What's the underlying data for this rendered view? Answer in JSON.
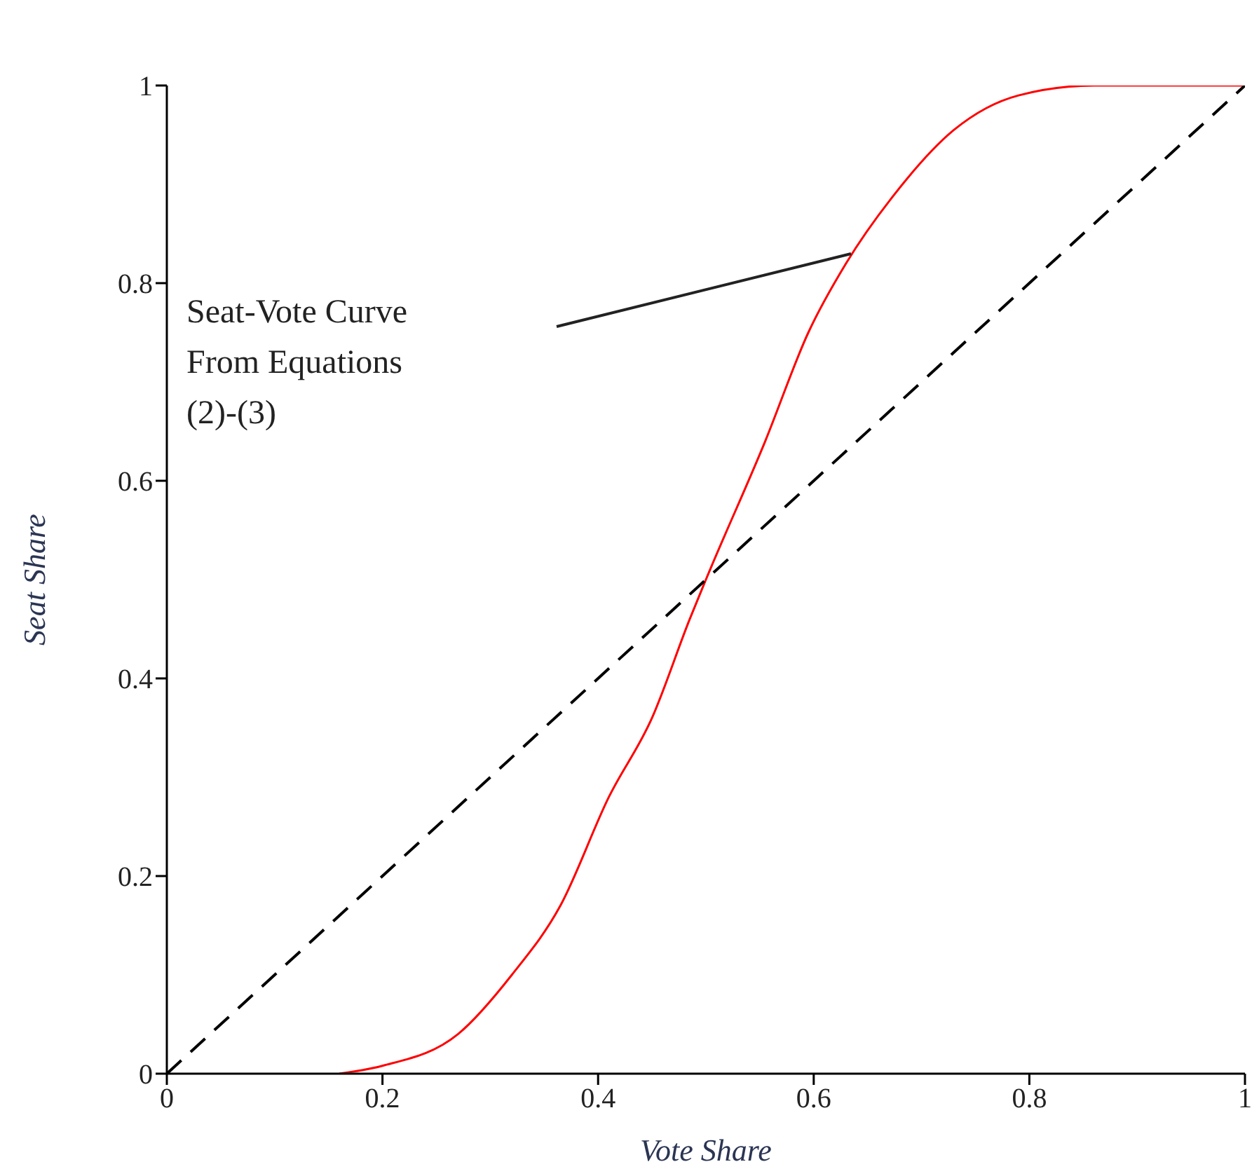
{
  "chart_data": {
    "type": "line",
    "xlabel": "Vote Share",
    "ylabel": "Seat Share",
    "xlim": [
      0,
      1
    ],
    "ylim": [
      0,
      1
    ],
    "xticks": [
      0,
      0.2,
      0.4,
      0.6,
      0.8,
      1
    ],
    "yticks": [
      0,
      0.2,
      0.4,
      0.6,
      0.8,
      1
    ],
    "marker": "none",
    "series": [
      {
        "color": "#ff0000",
        "line_style": "solid",
        "x": [
          0.16,
          0.2,
          0.27,
          0.32,
          0.365,
          0.41,
          0.45,
          0.485,
          0.5,
          0.555,
          0.595,
          0.63,
          0.675,
          0.73,
          0.79,
          0.86,
          1
        ],
        "values": [
          0,
          0.008,
          0.04,
          0.1,
          0.17,
          0.28,
          0.36,
          0.46,
          0.5,
          0.64,
          0.75,
          0.82,
          0.89,
          0.955,
          0.99,
          1,
          1
        ]
      },
      {
        "color": "#000000",
        "line_style": "dashed",
        "x": [
          0,
          1
        ],
        "values": [
          0,
          1
        ]
      }
    ],
    "annotations": [
      "Seat-Vote Curve\nFrom Equations\n(2)-(3)"
    ]
  }
}
